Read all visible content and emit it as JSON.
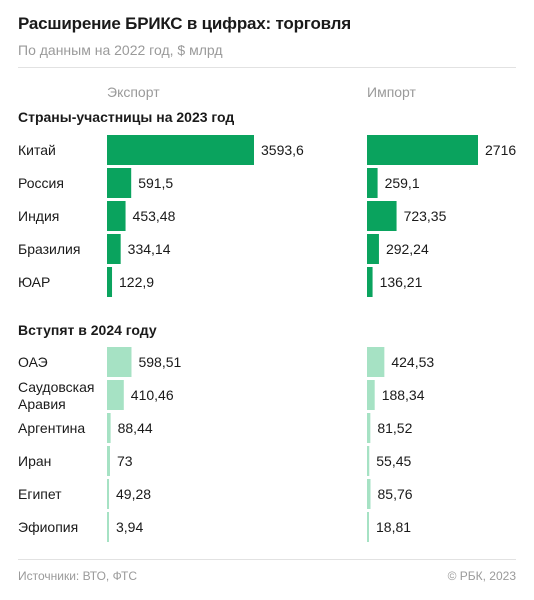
{
  "header": {
    "title": "Расширение БРИКС в цифрах: торговля",
    "subtitle": "По данным на 2022 год, $ млрд"
  },
  "columns": {
    "export": "Экспорт",
    "import": "Импорт"
  },
  "footer": {
    "source": "Источники: ВТО, ФТС",
    "credit": "© РБК, 2023"
  },
  "colors": {
    "members": "#0aa35e",
    "new_members": "#a6e2c4",
    "text": "#1a1a1a",
    "muted": "#9a9a9a"
  },
  "chart_data": {
    "type": "bar",
    "orientation": "horizontal",
    "title": "Расширение БРИКС в цифрах: торговля",
    "unit": "$ млрд",
    "series_names": [
      "Экспорт",
      "Импорт"
    ],
    "groups": [
      {
        "name": "Страны-участницы на 2023 год",
        "color": "#0aa35e",
        "rows": [
          {
            "country": "Китай",
            "export": 3593.6,
            "import": 2716,
            "export_label": "3593,6",
            "import_label": "2716"
          },
          {
            "country": "Россия",
            "export": 591.5,
            "import": 259.1,
            "export_label": "591,5",
            "import_label": "259,1"
          },
          {
            "country": "Индия",
            "export": 453.48,
            "import": 723.35,
            "export_label": "453,48",
            "import_label": "723,35"
          },
          {
            "country": "Бразилия",
            "export": 334.14,
            "import": 292.24,
            "export_label": "334,14",
            "import_label": "292,24"
          },
          {
            "country": "ЮАР",
            "export": 122.9,
            "import": 136.21,
            "export_label": "122,9",
            "import_label": "136,21"
          }
        ]
      },
      {
        "name": "Вступят в 2024 году",
        "color": "#a6e2c4",
        "rows": [
          {
            "country": "ОАЭ",
            "export": 598.51,
            "import": 424.53,
            "export_label": "598,51",
            "import_label": "424,53"
          },
          {
            "country": "Саудовская Аравия",
            "export": 410.46,
            "import": 188.34,
            "export_label": "410,46",
            "import_label": "188,34"
          },
          {
            "country": "Аргентина",
            "export": 88.44,
            "import": 81.52,
            "export_label": "88,44",
            "import_label": "81,52"
          },
          {
            "country": "Иран",
            "export": 73,
            "import": 55.45,
            "export_label": "73",
            "import_label": "55,45"
          },
          {
            "country": "Египет",
            "export": 49.28,
            "import": 85.76,
            "export_label": "49,28",
            "import_label": "85,76"
          },
          {
            "country": "Эфиопия",
            "export": 3.94,
            "import": 18.81,
            "export_label": "3,94",
            "import_label": "18,81"
          }
        ]
      }
    ]
  }
}
